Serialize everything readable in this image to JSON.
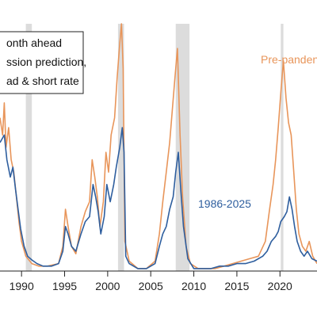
{
  "chart_data": {
    "type": "line",
    "title": "",
    "xlabel": "",
    "ylabel": "",
    "xlim": [
      1987.5,
      2024.3
    ],
    "ylim": [
      0,
      1.0
    ],
    "xticks": [
      "1990",
      "1995",
      "2000",
      "2005",
      "2010",
      "2015",
      "2020"
    ],
    "grid": false,
    "legend_box": {
      "position": "top-left",
      "lines": [
        "onth ahead",
        "ssion prediction,",
        "ad & short rate"
      ]
    },
    "recessions": [
      [
        1990.5,
        1991.2
      ],
      [
        2001.2,
        2001.9
      ],
      [
        2007.9,
        2009.5
      ],
      [
        2020.1,
        2020.4
      ]
    ],
    "series": [
      {
        "name": "1986-2025",
        "color": "#2e5e9e",
        "points": [
          [
            1987.5,
            0.52
          ],
          [
            1988.0,
            0.55
          ],
          [
            1988.3,
            0.45
          ],
          [
            1988.7,
            0.38
          ],
          [
            1989.0,
            0.42
          ],
          [
            1989.3,
            0.33
          ],
          [
            1989.6,
            0.25
          ],
          [
            1989.9,
            0.17
          ],
          [
            1990.3,
            0.1
          ],
          [
            1990.7,
            0.06
          ],
          [
            1991.2,
            0.045
          ],
          [
            1991.8,
            0.03
          ],
          [
            1992.5,
            0.02
          ],
          [
            1993.5,
            0.02
          ],
          [
            1994.3,
            0.03
          ],
          [
            1994.8,
            0.08
          ],
          [
            1995.1,
            0.18
          ],
          [
            1995.4,
            0.15
          ],
          [
            1995.8,
            0.1
          ],
          [
            1996.3,
            0.08
          ],
          [
            1996.9,
            0.15
          ],
          [
            1997.4,
            0.2
          ],
          [
            1997.9,
            0.22
          ],
          [
            1998.3,
            0.35
          ],
          [
            1998.6,
            0.3
          ],
          [
            1998.9,
            0.24
          ],
          [
            1999.2,
            0.15
          ],
          [
            1999.6,
            0.22
          ],
          [
            1999.9,
            0.35
          ],
          [
            2000.3,
            0.28
          ],
          [
            2000.7,
            0.35
          ],
          [
            2001.0,
            0.42
          ],
          [
            2001.4,
            0.5
          ],
          [
            2001.7,
            0.58
          ],
          [
            2001.9,
            0.48
          ],
          [
            2002.1,
            0.06
          ],
          [
            2002.5,
            0.03
          ],
          [
            2003.5,
            0.01
          ],
          [
            2004.5,
            0.01
          ],
          [
            2005.5,
            0.03
          ],
          [
            2006.0,
            0.1
          ],
          [
            2006.4,
            0.15
          ],
          [
            2006.8,
            0.18
          ],
          [
            2007.2,
            0.25
          ],
          [
            2007.6,
            0.3
          ],
          [
            2007.9,
            0.4
          ],
          [
            2008.2,
            0.48
          ],
          [
            2008.5,
            0.32
          ],
          [
            2008.8,
            0.18
          ],
          [
            2009.3,
            0.05
          ],
          [
            2010.0,
            0.01
          ],
          [
            2011.0,
            0.01
          ],
          [
            2012.0,
            0.01
          ],
          [
            2013.0,
            0.02
          ],
          [
            2014.0,
            0.02
          ],
          [
            2015.0,
            0.03
          ],
          [
            2016.0,
            0.03
          ],
          [
            2017.0,
            0.04
          ],
          [
            2018.0,
            0.06
          ],
          [
            2018.5,
            0.08
          ],
          [
            2019.0,
            0.12
          ],
          [
            2019.5,
            0.14
          ],
          [
            2019.8,
            0.16
          ],
          [
            2020.1,
            0.2
          ],
          [
            2020.5,
            0.22
          ],
          [
            2020.8,
            0.24
          ],
          [
            2021.1,
            0.3
          ],
          [
            2021.4,
            0.25
          ],
          [
            2021.7,
            0.18
          ],
          [
            2022.0,
            0.12
          ],
          [
            2022.4,
            0.08
          ],
          [
            2022.8,
            0.06
          ],
          [
            2023.2,
            0.08
          ],
          [
            2023.7,
            0.05
          ],
          [
            2024.3,
            0.04
          ]
        ]
      },
      {
        "name": "Pre-panden",
        "color": "#e8955a",
        "points": [
          [
            1987.5,
            0.62
          ],
          [
            1987.8,
            0.55
          ],
          [
            1988.0,
            0.68
          ],
          [
            1988.2,
            0.5
          ],
          [
            1988.5,
            0.58
          ],
          [
            1988.8,
            0.45
          ],
          [
            1989.1,
            0.4
          ],
          [
            1989.4,
            0.3
          ],
          [
            1989.7,
            0.2
          ],
          [
            1990.0,
            0.12
          ],
          [
            1990.5,
            0.06
          ],
          [
            1991.2,
            0.03
          ],
          [
            1992.0,
            0.02
          ],
          [
            1993.0,
            0.02
          ],
          [
            1994.3,
            0.03
          ],
          [
            1994.8,
            0.1
          ],
          [
            1995.1,
            0.25
          ],
          [
            1995.4,
            0.18
          ],
          [
            1995.8,
            0.1
          ],
          [
            1996.3,
            0.07
          ],
          [
            1996.9,
            0.18
          ],
          [
            1997.4,
            0.24
          ],
          [
            1997.9,
            0.28
          ],
          [
            1998.2,
            0.45
          ],
          [
            1998.5,
            0.38
          ],
          [
            1998.8,
            0.3
          ],
          [
            1999.1,
            0.18
          ],
          [
            1999.5,
            0.28
          ],
          [
            1999.8,
            0.48
          ],
          [
            2000.1,
            0.4
          ],
          [
            2000.4,
            0.55
          ],
          [
            2000.8,
            0.62
          ],
          [
            2001.1,
            0.78
          ],
          [
            2001.4,
            0.92
          ],
          [
            2001.6,
            1.0
          ],
          [
            2001.8,
            0.82
          ],
          [
            2002.0,
            0.12
          ],
          [
            2002.5,
            0.04
          ],
          [
            2003.5,
            0.01
          ],
          [
            2004.5,
            0.01
          ],
          [
            2005.5,
            0.04
          ],
          [
            2006.0,
            0.15
          ],
          [
            2006.4,
            0.28
          ],
          [
            2006.8,
            0.4
          ],
          [
            2007.2,
            0.52
          ],
          [
            2007.5,
            0.65
          ],
          [
            2007.8,
            0.78
          ],
          [
            2008.1,
            0.9
          ],
          [
            2008.4,
            0.55
          ],
          [
            2008.7,
            0.3
          ],
          [
            2009.1,
            0.1
          ],
          [
            2009.6,
            0.03
          ],
          [
            2010.5,
            0.01
          ],
          [
            2011.5,
            0.01
          ],
          [
            2012.5,
            0.01
          ],
          [
            2013.5,
            0.02
          ],
          [
            2014.5,
            0.03
          ],
          [
            2015.5,
            0.04
          ],
          [
            2016.5,
            0.05
          ],
          [
            2017.5,
            0.06
          ],
          [
            2018.3,
            0.12
          ],
          [
            2018.8,
            0.25
          ],
          [
            2019.2,
            0.35
          ],
          [
            2019.5,
            0.45
          ],
          [
            2019.8,
            0.58
          ],
          [
            2020.1,
            0.72
          ],
          [
            2020.4,
            0.85
          ],
          [
            2020.7,
            0.7
          ],
          [
            2021.0,
            0.6
          ],
          [
            2021.3,
            0.55
          ],
          [
            2021.6,
            0.4
          ],
          [
            2021.9,
            0.25
          ],
          [
            2022.2,
            0.15
          ],
          [
            2022.6,
            0.1
          ],
          [
            2023.0,
            0.08
          ],
          [
            2023.4,
            0.12
          ],
          [
            2023.8,
            0.06
          ],
          [
            2024.3,
            0.03
          ]
        ]
      }
    ]
  }
}
